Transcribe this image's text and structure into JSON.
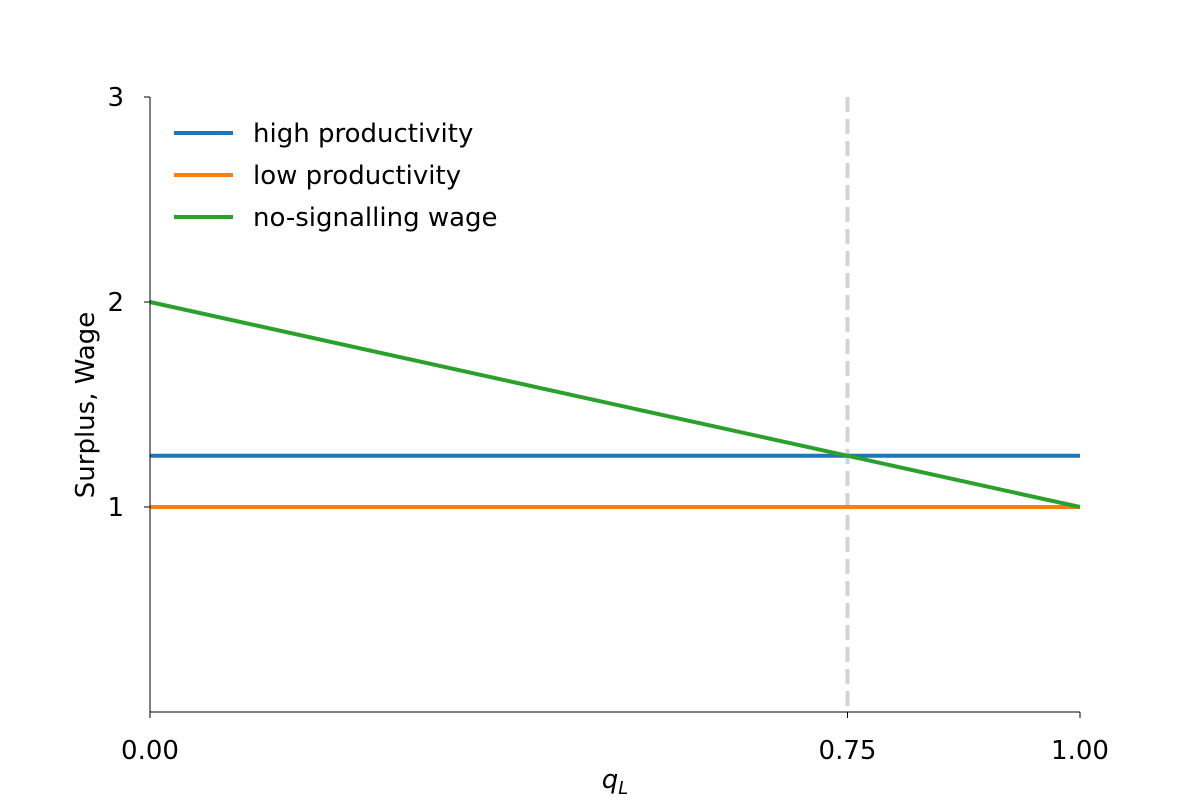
{
  "chart_data": {
    "type": "line",
    "title": "",
    "xlabel": "q",
    "xlabel_sub": "L",
    "ylabel": "Surplus, Wage",
    "xlim": [
      0,
      1
    ],
    "ylim": [
      0,
      3
    ],
    "x_ticks": [
      0,
      0.75,
      1
    ],
    "x_tick_labels": [
      "0.00",
      "0.75",
      "1.00"
    ],
    "y_ticks": [
      1,
      2,
      3
    ],
    "y_tick_labels": [
      "1",
      "2",
      "3"
    ],
    "grid": false,
    "legend_position": "top-left",
    "series": [
      {
        "name": "high productivity",
        "color": "#1f77b4",
        "x": [
          0,
          1
        ],
        "y": [
          1.25,
          1.25
        ]
      },
      {
        "name": "low productivity",
        "color": "#ff7f0e",
        "x": [
          0,
          1
        ],
        "y": [
          1,
          1
        ]
      },
      {
        "name": "no-signalling wage",
        "color": "#2ca02c",
        "x": [
          0,
          1
        ],
        "y": [
          2,
          1
        ]
      }
    ],
    "vlines": [
      {
        "x": 0.75,
        "style": "dashed",
        "color": "#d3d3d3"
      }
    ]
  }
}
